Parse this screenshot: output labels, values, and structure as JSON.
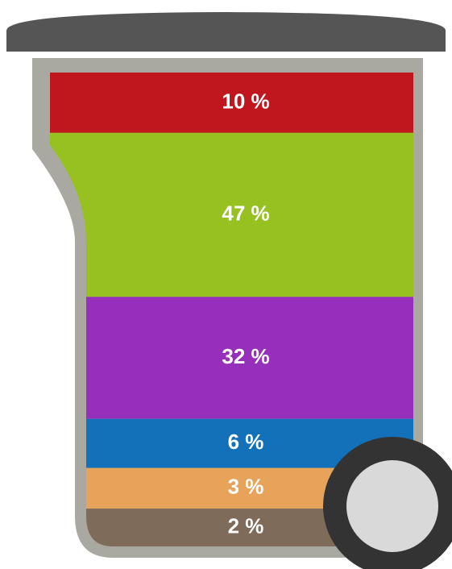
{
  "chart_data": {
    "type": "bin",
    "values": [
      10,
      47,
      32,
      6,
      3,
      2
    ],
    "value_labels": [
      "10 %",
      "47 %",
      "32 %",
      "6 %",
      "3 %",
      "2 %"
    ],
    "colors": [
      "#c0171f",
      "#96c120",
      "#962fbb",
      "#1271b8",
      "#e8a35a",
      "#7e6b5a"
    ]
  }
}
